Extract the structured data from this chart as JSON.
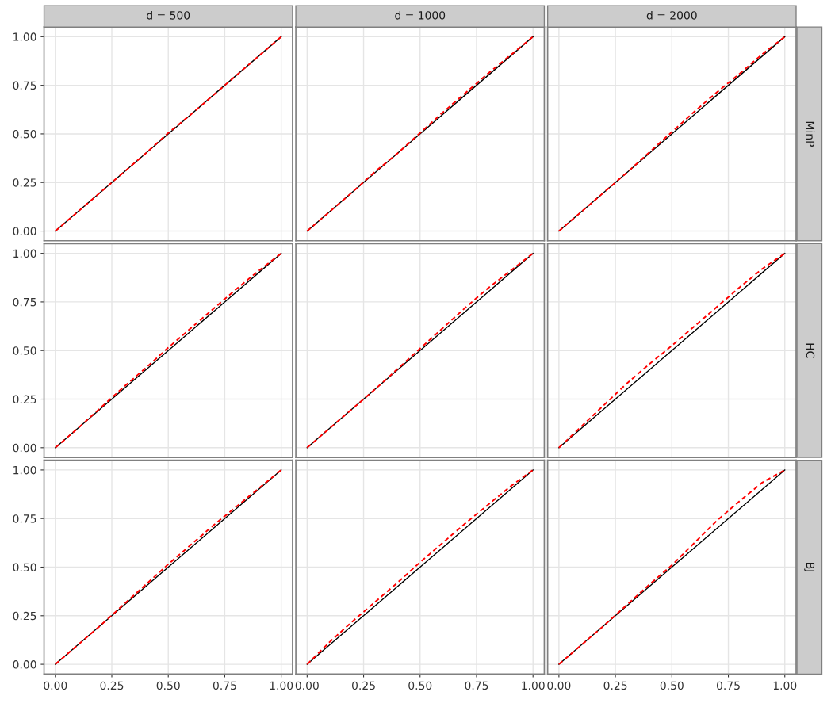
{
  "chart_data": [
    {
      "type": "line",
      "title": "d = 500",
      "x": [
        0,
        0.1,
        0.2,
        0.3,
        0.4,
        0.5,
        0.6,
        0.7,
        0.8,
        0.9,
        1
      ],
      "xlim": [
        -0.05,
        1.05
      ],
      "ylim": [
        -0.05,
        1.05
      ],
      "xticks": [
        {
          "value": 0,
          "label": null
        },
        {
          "value": 0.25,
          "label": null
        },
        {
          "value": 0.5,
          "label": null
        },
        {
          "value": 0.75,
          "label": null
        },
        {
          "value": 1,
          "label": null
        }
      ],
      "yticks": [
        {
          "value": 0,
          "label": "0.00"
        },
        {
          "value": 0.25,
          "label": "0.25"
        },
        {
          "value": 0.5,
          "label": "0.50"
        },
        {
          "value": 0.75,
          "label": "0.75"
        },
        {
          "value": 1,
          "label": "1.00"
        }
      ],
      "grid": true,
      "tick_labels": "y",
      "series": [
        {
          "color": "#000000",
          "line_style": "solid",
          "values": [
            0,
            0.1,
            0.2,
            0.3,
            0.4,
            0.5,
            0.6,
            0.7,
            0.8,
            0.9,
            1
          ]
        },
        {
          "color": "#ff0000",
          "line_style": "dashed",
          "values": [
            0,
            0.1,
            0.2,
            0.3,
            0.4,
            0.505,
            0.6,
            0.7,
            0.8,
            0.9,
            1
          ]
        }
      ]
    },
    {
      "type": "line",
      "title": "d = 1000",
      "x": [
        0,
        0.1,
        0.2,
        0.3,
        0.4,
        0.5,
        0.6,
        0.7,
        0.8,
        0.9,
        1
      ],
      "xlim": [
        -0.05,
        1.05
      ],
      "ylim": [
        -0.05,
        1.05
      ],
      "xticks": [
        {
          "value": 0,
          "label": null
        },
        {
          "value": 0.25,
          "label": null
        },
        {
          "value": 0.5,
          "label": null
        },
        {
          "value": 0.75,
          "label": null
        },
        {
          "value": 1,
          "label": null
        }
      ],
      "yticks": [
        {
          "value": 0,
          "label": null
        },
        {
          "value": 0.25,
          "label": null
        },
        {
          "value": 0.5,
          "label": null
        },
        {
          "value": 0.75,
          "label": null
        },
        {
          "value": 1,
          "label": null
        }
      ],
      "grid": true,
      "tick_labels": false,
      "series": [
        {
          "color": "#000000",
          "line_style": "solid",
          "values": [
            0,
            0.1,
            0.2,
            0.3,
            0.4,
            0.5,
            0.6,
            0.7,
            0.8,
            0.9,
            1
          ]
        },
        {
          "color": "#ff0000",
          "line_style": "dashed",
          "values": [
            0,
            0.1,
            0.2,
            0.305,
            0.4,
            0.505,
            0.61,
            0.71,
            0.81,
            0.905,
            1
          ]
        }
      ]
    },
    {
      "type": "line",
      "title": "d = 2000",
      "y2label": "MinP",
      "x": [
        0,
        0.1,
        0.2,
        0.3,
        0.4,
        0.5,
        0.6,
        0.7,
        0.8,
        0.9,
        1
      ],
      "xlim": [
        -0.05,
        1.05
      ],
      "ylim": [
        -0.05,
        1.05
      ],
      "xticks": [
        {
          "value": 0,
          "label": null
        },
        {
          "value": 0.25,
          "label": null
        },
        {
          "value": 0.5,
          "label": null
        },
        {
          "value": 0.75,
          "label": null
        },
        {
          "value": 1,
          "label": null
        }
      ],
      "yticks": [
        {
          "value": 0,
          "label": null
        },
        {
          "value": 0.25,
          "label": null
        },
        {
          "value": 0.5,
          "label": null
        },
        {
          "value": 0.75,
          "label": null
        },
        {
          "value": 1,
          "label": null
        }
      ],
      "grid": true,
      "tick_labels": false,
      "series": [
        {
          "color": "#000000",
          "line_style": "solid",
          "values": [
            0,
            0.1,
            0.2,
            0.3,
            0.4,
            0.5,
            0.6,
            0.7,
            0.8,
            0.9,
            1
          ]
        },
        {
          "color": "#ff0000",
          "line_style": "dashed",
          "values": [
            0,
            0.1,
            0.2,
            0.3,
            0.405,
            0.51,
            0.615,
            0.715,
            0.81,
            0.91,
            1
          ]
        }
      ]
    },
    {
      "type": "line",
      "x": [
        0,
        0.1,
        0.2,
        0.3,
        0.4,
        0.5,
        0.6,
        0.7,
        0.8,
        0.9,
        1
      ],
      "xlim": [
        -0.05,
        1.05
      ],
      "ylim": [
        -0.05,
        1.05
      ],
      "xticks": [
        {
          "value": 0,
          "label": null
        },
        {
          "value": 0.25,
          "label": null
        },
        {
          "value": 0.5,
          "label": null
        },
        {
          "value": 0.75,
          "label": null
        },
        {
          "value": 1,
          "label": null
        }
      ],
      "yticks": [
        {
          "value": 0,
          "label": "0.00"
        },
        {
          "value": 0.25,
          "label": "0.25"
        },
        {
          "value": 0.5,
          "label": "0.50"
        },
        {
          "value": 0.75,
          "label": "0.75"
        },
        {
          "value": 1,
          "label": "1.00"
        }
      ],
      "grid": true,
      "tick_labels": "y",
      "series": [
        {
          "color": "#000000",
          "line_style": "solid",
          "values": [
            0,
            0.1,
            0.2,
            0.3,
            0.4,
            0.5,
            0.6,
            0.7,
            0.8,
            0.9,
            1
          ]
        },
        {
          "color": "#ff0000",
          "line_style": "dashed",
          "values": [
            0,
            0.1,
            0.205,
            0.31,
            0.41,
            0.515,
            0.615,
            0.715,
            0.815,
            0.91,
            1
          ]
        }
      ]
    },
    {
      "type": "line",
      "x": [
        0,
        0.1,
        0.2,
        0.3,
        0.4,
        0.5,
        0.6,
        0.7,
        0.8,
        0.9,
        1
      ],
      "xlim": [
        -0.05,
        1.05
      ],
      "ylim": [
        -0.05,
        1.05
      ],
      "xticks": [
        {
          "value": 0,
          "label": null
        },
        {
          "value": 0.25,
          "label": null
        },
        {
          "value": 0.5,
          "label": null
        },
        {
          "value": 0.75,
          "label": null
        },
        {
          "value": 1,
          "label": null
        }
      ],
      "yticks": [
        {
          "value": 0,
          "label": null
        },
        {
          "value": 0.25,
          "label": null
        },
        {
          "value": 0.5,
          "label": null
        },
        {
          "value": 0.75,
          "label": null
        },
        {
          "value": 1,
          "label": null
        }
      ],
      "grid": true,
      "tick_labels": false,
      "series": [
        {
          "color": "#000000",
          "line_style": "solid",
          "values": [
            0,
            0.1,
            0.2,
            0.3,
            0.4,
            0.5,
            0.6,
            0.7,
            0.8,
            0.9,
            1
          ]
        },
        {
          "color": "#ff0000",
          "line_style": "dashed",
          "values": [
            0,
            0.1,
            0.2,
            0.3,
            0.405,
            0.51,
            0.615,
            0.72,
            0.82,
            0.91,
            1
          ]
        }
      ]
    },
    {
      "type": "line",
      "y2label": "HC",
      "x": [
        0,
        0.1,
        0.2,
        0.3,
        0.4,
        0.5,
        0.6,
        0.7,
        0.8,
        0.9,
        1
      ],
      "xlim": [
        -0.05,
        1.05
      ],
      "ylim": [
        -0.05,
        1.05
      ],
      "xticks": [
        {
          "value": 0,
          "label": null
        },
        {
          "value": 0.25,
          "label": null
        },
        {
          "value": 0.5,
          "label": null
        },
        {
          "value": 0.75,
          "label": null
        },
        {
          "value": 1,
          "label": null
        }
      ],
      "yticks": [
        {
          "value": 0,
          "label": null
        },
        {
          "value": 0.25,
          "label": null
        },
        {
          "value": 0.5,
          "label": null
        },
        {
          "value": 0.75,
          "label": null
        },
        {
          "value": 1,
          "label": null
        }
      ],
      "grid": true,
      "tick_labels": false,
      "series": [
        {
          "color": "#000000",
          "line_style": "solid",
          "values": [
            0,
            0.1,
            0.2,
            0.3,
            0.4,
            0.5,
            0.6,
            0.7,
            0.8,
            0.9,
            1
          ]
        },
        {
          "color": "#ff0000",
          "line_style": "dashed",
          "values": [
            0,
            0.11,
            0.22,
            0.33,
            0.43,
            0.525,
            0.625,
            0.725,
            0.825,
            0.92,
            1
          ]
        }
      ]
    },
    {
      "type": "line",
      "x": [
        0,
        0.1,
        0.2,
        0.3,
        0.4,
        0.5,
        0.6,
        0.7,
        0.8,
        0.9,
        1
      ],
      "xlim": [
        -0.05,
        1.05
      ],
      "ylim": [
        -0.05,
        1.05
      ],
      "xticks": [
        {
          "value": 0,
          "label": "0.00"
        },
        {
          "value": 0.25,
          "label": "0.25"
        },
        {
          "value": 0.5,
          "label": "0.50"
        },
        {
          "value": 0.75,
          "label": "0.75"
        },
        {
          "value": 1,
          "label": "1.00"
        }
      ],
      "yticks": [
        {
          "value": 0,
          "label": "0.00"
        },
        {
          "value": 0.25,
          "label": "0.25"
        },
        {
          "value": 0.5,
          "label": "0.50"
        },
        {
          "value": 0.75,
          "label": "0.75"
        },
        {
          "value": 1,
          "label": "1.00"
        }
      ],
      "grid": true,
      "series": [
        {
          "color": "#000000",
          "line_style": "solid",
          "values": [
            0,
            0.1,
            0.2,
            0.3,
            0.4,
            0.5,
            0.6,
            0.7,
            0.8,
            0.9,
            1
          ]
        },
        {
          "color": "#ff0000",
          "line_style": "dashed",
          "values": [
            0,
            0.1,
            0.2,
            0.305,
            0.41,
            0.515,
            0.615,
            0.715,
            0.81,
            0.905,
            1
          ]
        }
      ]
    },
    {
      "type": "line",
      "x": [
        0,
        0.1,
        0.2,
        0.3,
        0.4,
        0.5,
        0.6,
        0.7,
        0.8,
        0.9,
        1
      ],
      "xlim": [
        -0.05,
        1.05
      ],
      "ylim": [
        -0.05,
        1.05
      ],
      "xticks": [
        {
          "value": 0,
          "label": "0.00"
        },
        {
          "value": 0.25,
          "label": "0.25"
        },
        {
          "value": 0.5,
          "label": "0.50"
        },
        {
          "value": 0.75,
          "label": "0.75"
        },
        {
          "value": 1,
          "label": "1.00"
        }
      ],
      "yticks": [
        {
          "value": 0,
          "label": null
        },
        {
          "value": 0.25,
          "label": null
        },
        {
          "value": 0.5,
          "label": null
        },
        {
          "value": 0.75,
          "label": null
        },
        {
          "value": 1,
          "label": null
        }
      ],
      "grid": true,
      "tick_labels": "x",
      "series": [
        {
          "color": "#000000",
          "line_style": "solid",
          "values": [
            0,
            0.1,
            0.2,
            0.3,
            0.4,
            0.5,
            0.6,
            0.7,
            0.8,
            0.9,
            1
          ]
        },
        {
          "color": "#ff0000",
          "line_style": "dashed",
          "values": [
            0,
            0.115,
            0.22,
            0.32,
            0.42,
            0.525,
            0.625,
            0.725,
            0.82,
            0.915,
            1
          ]
        }
      ]
    },
    {
      "type": "line",
      "y2label": "BJ",
      "x": [
        0,
        0.1,
        0.2,
        0.3,
        0.4,
        0.5,
        0.6,
        0.7,
        0.8,
        0.9,
        1
      ],
      "xlim": [
        -0.05,
        1.05
      ],
      "ylim": [
        -0.05,
        1.05
      ],
      "xticks": [
        {
          "value": 0,
          "label": "0.00"
        },
        {
          "value": 0.25,
          "label": "0.25"
        },
        {
          "value": 0.5,
          "label": "0.50"
        },
        {
          "value": 0.75,
          "label": "0.75"
        },
        {
          "value": 1,
          "label": "1.00"
        }
      ],
      "yticks": [
        {
          "value": 0,
          "label": null
        },
        {
          "value": 0.25,
          "label": null
        },
        {
          "value": 0.5,
          "label": null
        },
        {
          "value": 0.75,
          "label": null
        },
        {
          "value": 1,
          "label": null
        }
      ],
      "grid": true,
      "tick_labels": "x",
      "series": [
        {
          "color": "#000000",
          "line_style": "solid",
          "values": [
            0,
            0.1,
            0.2,
            0.3,
            0.4,
            0.5,
            0.6,
            0.7,
            0.8,
            0.9,
            1
          ]
        },
        {
          "color": "#ff0000",
          "line_style": "dashed",
          "values": [
            0,
            0.1,
            0.2,
            0.305,
            0.41,
            0.51,
            0.625,
            0.74,
            0.84,
            0.935,
            1
          ]
        }
      ]
    }
  ]
}
